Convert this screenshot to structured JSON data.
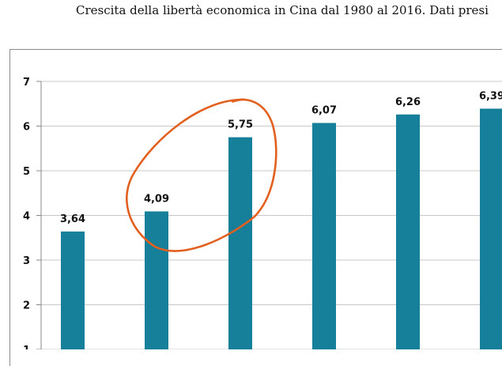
{
  "chart_data": {
    "type": "bar",
    "title": "Crescita della libertà economica in Cina dal 1980 al 2016. Dati presi",
    "xlabel": "",
    "ylabel": "",
    "ylim": [
      1,
      7
    ],
    "yticks": [
      1,
      2,
      3,
      4,
      5,
      6,
      7
    ],
    "grid": true,
    "bar_color": "#167f99",
    "values": [
      3.64,
      4.09,
      5.75,
      6.07,
      6.26,
      6.39
    ],
    "data_labels": [
      "3,64",
      "4,09",
      "5,75",
      "6,07",
      "6,26",
      "6,39"
    ],
    "annotation": {
      "type": "hand-drawn-circle",
      "color": "#e2601f",
      "around_bar_values": [
        4.09,
        5.75
      ]
    }
  }
}
